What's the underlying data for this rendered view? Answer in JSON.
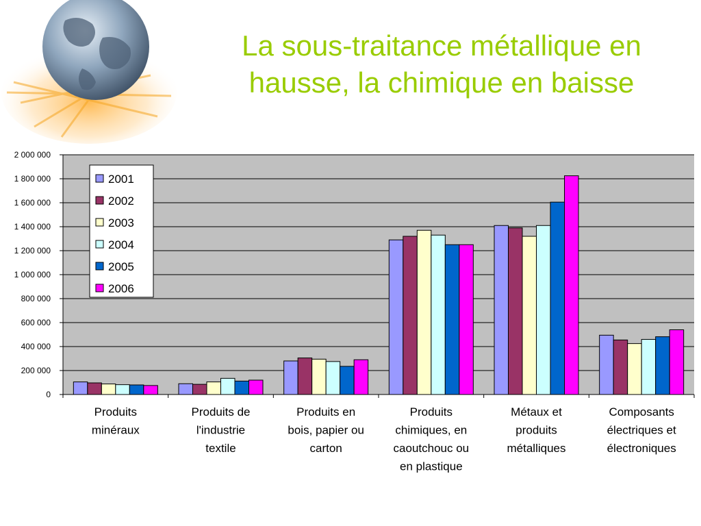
{
  "slide": {
    "title_line1": "La sous-traitance métallique en",
    "title_line2": "hausse, la chimique en baisse"
  },
  "colors": {
    "title": "#99cc00",
    "plot_background": "#c0c0c0",
    "series": [
      "#9999ff",
      "#993366",
      "#ffffcc",
      "#ccffff",
      "#0066cc",
      "#ff00ff"
    ]
  },
  "chart_data": {
    "type": "bar",
    "title": "",
    "xlabel": "",
    "ylabel": "",
    "ylim": [
      0,
      2000000
    ],
    "yticks": [
      0,
      200000,
      400000,
      600000,
      800000,
      1000000,
      1200000,
      1400000,
      1600000,
      1800000,
      2000000
    ],
    "ytick_labels": [
      "0",
      "200 000",
      "400 000",
      "600 000",
      "800 000",
      "1 000 000",
      "1 200 000",
      "1 400 000",
      "1 600 000",
      "1 800 000",
      "2 000 000"
    ],
    "grid": true,
    "legend_position": "top-left",
    "categories": [
      [
        "Produits",
        "minéraux"
      ],
      [
        "Produits de",
        "l'industrie",
        "textile"
      ],
      [
        "Produits en",
        "bois, papier ou",
        "carton"
      ],
      [
        "Produits",
        "chimiques, en",
        "caoutchouc ou",
        "en plastique"
      ],
      [
        "Métaux et",
        "produits",
        "métalliques"
      ],
      [
        "Composants",
        "électriques et",
        "électroniques"
      ]
    ],
    "series": [
      {
        "name": "2001",
        "values": [
          105000,
          90000,
          280000,
          1290000,
          1410000,
          495000
        ]
      },
      {
        "name": "2002",
        "values": [
          97000,
          85000,
          305000,
          1320000,
          1390000,
          455000
        ]
      },
      {
        "name": "2003",
        "values": [
          88000,
          105000,
          295000,
          1370000,
          1320000,
          425000
        ]
      },
      {
        "name": "2004",
        "values": [
          82000,
          135000,
          275000,
          1330000,
          1410000,
          460000
        ]
      },
      {
        "name": "2005",
        "values": [
          80000,
          112000,
          235000,
          1250000,
          1605000,
          482000
        ]
      },
      {
        "name": "2006",
        "values": [
          75000,
          120000,
          290000,
          1250000,
          1825000,
          540000
        ]
      }
    ]
  }
}
